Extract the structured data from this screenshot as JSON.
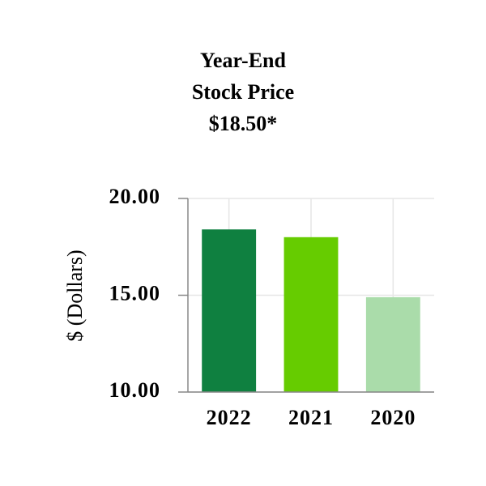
{
  "chart_data": {
    "type": "bar",
    "title": [
      "Year-End",
      "Stock Price"
    ],
    "subtitle": "$18.50*",
    "y_label": "$ (Dollars)",
    "categories": [
      "2022",
      "2021",
      "2020"
    ],
    "values": [
      18.4,
      18.0,
      14.9
    ],
    "colors": [
      "#0f8040",
      "#66cc00",
      "#aadcaa"
    ],
    "ylim": [
      10,
      20
    ],
    "yticks": [
      {
        "value": 10,
        "label": "10.00"
      },
      {
        "value": 15,
        "label": "15.00"
      },
      {
        "value": 20,
        "label": "20.00"
      }
    ],
    "grid": true
  }
}
